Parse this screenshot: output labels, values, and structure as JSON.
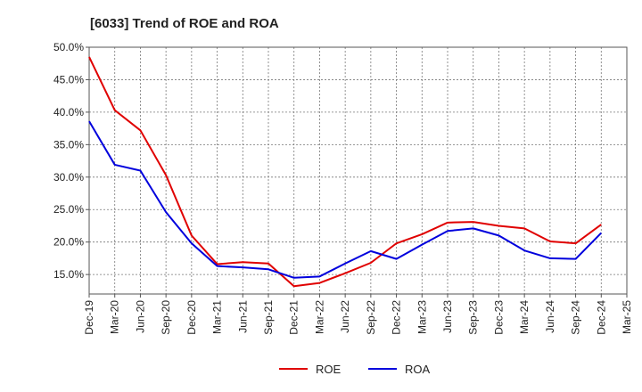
{
  "chart_data": {
    "type": "line",
    "title": "[6033]  Trend of ROE and ROA",
    "xlabel": "",
    "ylabel": "",
    "x": [
      "Dec-19",
      "Mar-20",
      "Jun-20",
      "Sep-20",
      "Dec-20",
      "Mar-21",
      "Jun-21",
      "Sep-21",
      "Dec-21",
      "Mar-22",
      "Jun-22",
      "Sep-22",
      "Dec-22",
      "Mar-23",
      "Jun-23",
      "Sep-23",
      "Dec-23",
      "Mar-24",
      "Jun-24",
      "Sep-24",
      "Dec-24",
      "Mar-25"
    ],
    "ylim": [
      12.0,
      50.0
    ],
    "yticks": [
      15.0,
      20.0,
      25.0,
      30.0,
      35.0,
      40.0,
      45.0,
      50.0
    ],
    "ytick_labels": [
      "15.0%",
      "20.0%",
      "25.0%",
      "30.0%",
      "35.0%",
      "40.0%",
      "45.0%",
      "50.0%"
    ],
    "grid": true,
    "legend_position": "bottom-center",
    "series": [
      {
        "name": "ROE",
        "color": "#e00000",
        "values": [
          48.5,
          40.3,
          37.2,
          30.3,
          21.0,
          16.6,
          16.9,
          16.7,
          13.2,
          13.7,
          15.2,
          16.8,
          19.8,
          21.2,
          23.0,
          23.1,
          22.5,
          22.1,
          20.1,
          19.8,
          22.7,
          null
        ]
      },
      {
        "name": "ROA",
        "color": "#0000dd",
        "values": [
          38.6,
          31.9,
          31.0,
          24.6,
          19.8,
          16.3,
          16.1,
          15.8,
          14.5,
          14.7,
          16.7,
          18.6,
          17.4,
          19.6,
          21.7,
          22.1,
          21.0,
          18.7,
          17.5,
          17.4,
          21.4,
          null
        ]
      }
    ]
  }
}
